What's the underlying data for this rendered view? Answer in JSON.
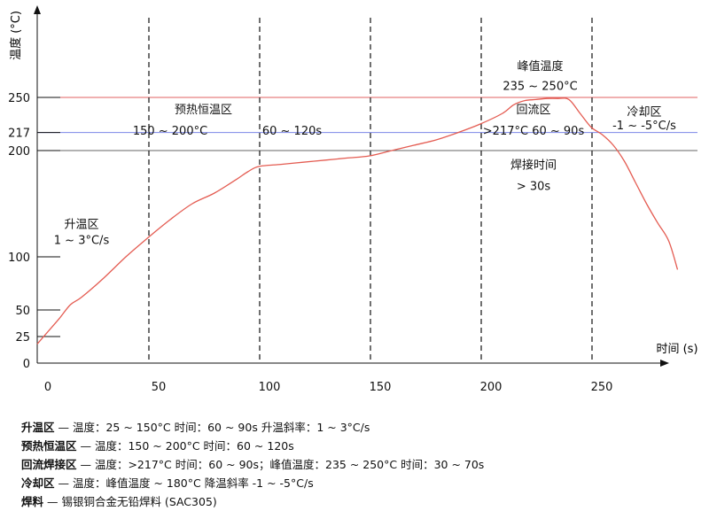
{
  "chart_data": {
    "type": "line",
    "xlabel": "时间 (s)",
    "ylabel": "温度 (°C)",
    "xlim": [
      0,
      295
    ],
    "ylim": [
      0,
      320
    ],
    "x_ticks": [
      0,
      50,
      100,
      150,
      200,
      250
    ],
    "y_ticks": [
      0,
      25,
      50,
      100,
      200,
      217,
      250
    ],
    "x": [
      0,
      5,
      10,
      15,
      20,
      30,
      40,
      50,
      60,
      70,
      80,
      90,
      95,
      100,
      110,
      120,
      130,
      140,
      150,
      160,
      170,
      180,
      190,
      200,
      210,
      215,
      220,
      225,
      230,
      235,
      240,
      245,
      250,
      255,
      260,
      265,
      270,
      275,
      280,
      285,
      289
    ],
    "series": [
      {
        "values": [
          18,
          30,
          42,
          55,
          62,
          80,
          100,
          118,
          135,
          150,
          160,
          173,
          180,
          185,
          187,
          189,
          191,
          193,
          195,
          200,
          205,
          210,
          217,
          225,
          235,
          243,
          247,
          248,
          249,
          249,
          248,
          235,
          222,
          215,
          205,
          190,
          170,
          150,
          132,
          115,
          88
        ],
        "color": "#e45c52"
      }
    ],
    "reference_lines": [
      {
        "y": 250,
        "color": "#e06060"
      },
      {
        "y": 217,
        "color": "#7b86e8"
      },
      {
        "y": 200,
        "color": "#666666"
      }
    ],
    "vertical_dashed": [
      50,
      100,
      150,
      200,
      250
    ],
    "annotations": [
      {
        "text": "升温区",
        "x": 20,
        "y": 127
      },
      {
        "text": "1 ~ 3°C/s",
        "x": 20,
        "y": 112
      },
      {
        "text": "预热恒温区",
        "x": 75,
        "y": 235
      },
      {
        "text": "150 ~ 200°C",
        "x": 60,
        "y": 215
      },
      {
        "text": "60 ~ 120s",
        "x": 115,
        "y": 215
      },
      {
        "text": "峰值温度",
        "x": 227,
        "y": 276
      },
      {
        "text": "235 ~ 250°C",
        "x": 227,
        "y": 257
      },
      {
        "text": "回流区",
        "x": 224,
        "y": 235
      },
      {
        "text": ">217°C  60 ~ 90s",
        "x": 224,
        "y": 215
      },
      {
        "text": "焊接时间",
        "x": 224,
        "y": 183
      },
      {
        "text": "> 30s",
        "x": 224,
        "y": 163
      },
      {
        "text": "冷却区",
        "x": 274,
        "y": 233
      },
      {
        "text": "-1 ~ -5°C/s",
        "x": 274,
        "y": 220
      }
    ],
    "grid": false,
    "legend": false
  },
  "notes": [
    {
      "key": "升温区",
      "text": " — 温度：25 ~ 150°C  时间：60 ~ 90s  升温斜率：1 ~ 3°C/s"
    },
    {
      "key": "预热恒温区",
      "text": " — 温度：150 ~ 200°C  时间：60 ~ 120s"
    },
    {
      "key": "回流焊接区",
      "text": " — 温度：>217°C  时间：60 ~ 90s；峰值温度：235 ~ 250°C  时间：30 ~ 70s"
    },
    {
      "key": "冷却区",
      "text": " — 温度：峰值温度 ~ 180°C  降温斜率 -1 ~ -5°C/s"
    },
    {
      "key": "焊料",
      "text": " — 锡银铜合金无铅焊料 (SAC305)"
    }
  ],
  "colors": {
    "axis": "#111111",
    "curve": "#e45c52",
    "dashed": "#222222"
  }
}
